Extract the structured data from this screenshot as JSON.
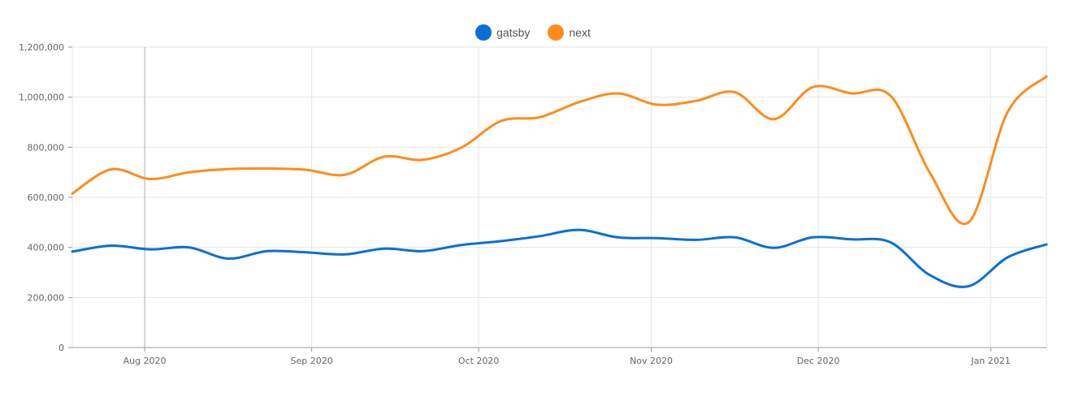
{
  "chart_data": {
    "type": "line",
    "title": "",
    "xlabel": "",
    "ylabel": "",
    "ylim": [
      0,
      1200000
    ],
    "yticks": [
      "0",
      "200,000",
      "400,000",
      "600,000",
      "800,000",
      "1,000,000",
      "1,200,000"
    ],
    "xticks": [
      {
        "label": "Aug 2020",
        "date": "2020-08-02"
      },
      {
        "label": "Sep 2020",
        "date": "2020-09-01"
      },
      {
        "label": "Oct 2020",
        "date": "2020-10-01"
      },
      {
        "label": "Nov 2020",
        "date": "2020-11-01"
      },
      {
        "label": "Dec 2020",
        "date": "2020-12-01"
      },
      {
        "label": "Jan 2021",
        "date": "2021-01-01"
      }
    ],
    "x": [
      "2020-07-20",
      "2020-07-27",
      "2020-08-03",
      "2020-08-10",
      "2020-08-17",
      "2020-08-24",
      "2020-08-31",
      "2020-09-07",
      "2020-09-14",
      "2020-09-21",
      "2020-09-28",
      "2020-10-05",
      "2020-10-12",
      "2020-10-19",
      "2020-10-26",
      "2020-11-02",
      "2020-11-09",
      "2020-11-16",
      "2020-11-23",
      "2020-11-30",
      "2020-12-07",
      "2020-12-14",
      "2020-12-21",
      "2020-12-28",
      "2021-01-04",
      "2021-01-11"
    ],
    "series": [
      {
        "name": "gatsby",
        "color": "#0a6fd6",
        "values": [
          383000,
          407000,
          392000,
          400000,
          355000,
          385000,
          380000,
          372000,
          395000,
          385000,
          410000,
          425000,
          445000,
          470000,
          440000,
          437000,
          430000,
          440000,
          398000,
          440000,
          432000,
          420000,
          290000,
          245000,
          360000,
          412000
        ]
      },
      {
        "name": "next",
        "color": "#ff8c1a",
        "values": [
          615000,
          712000,
          673000,
          700000,
          713000,
          715000,
          710000,
          690000,
          762000,
          750000,
          800000,
          905000,
          920000,
          980000,
          1015000,
          970000,
          985000,
          1020000,
          912000,
          1040000,
          1015000,
          1005000,
          700000,
          500000,
          940000,
          1083000
        ]
      }
    ],
    "grid": true,
    "legend_position": "top-center"
  }
}
